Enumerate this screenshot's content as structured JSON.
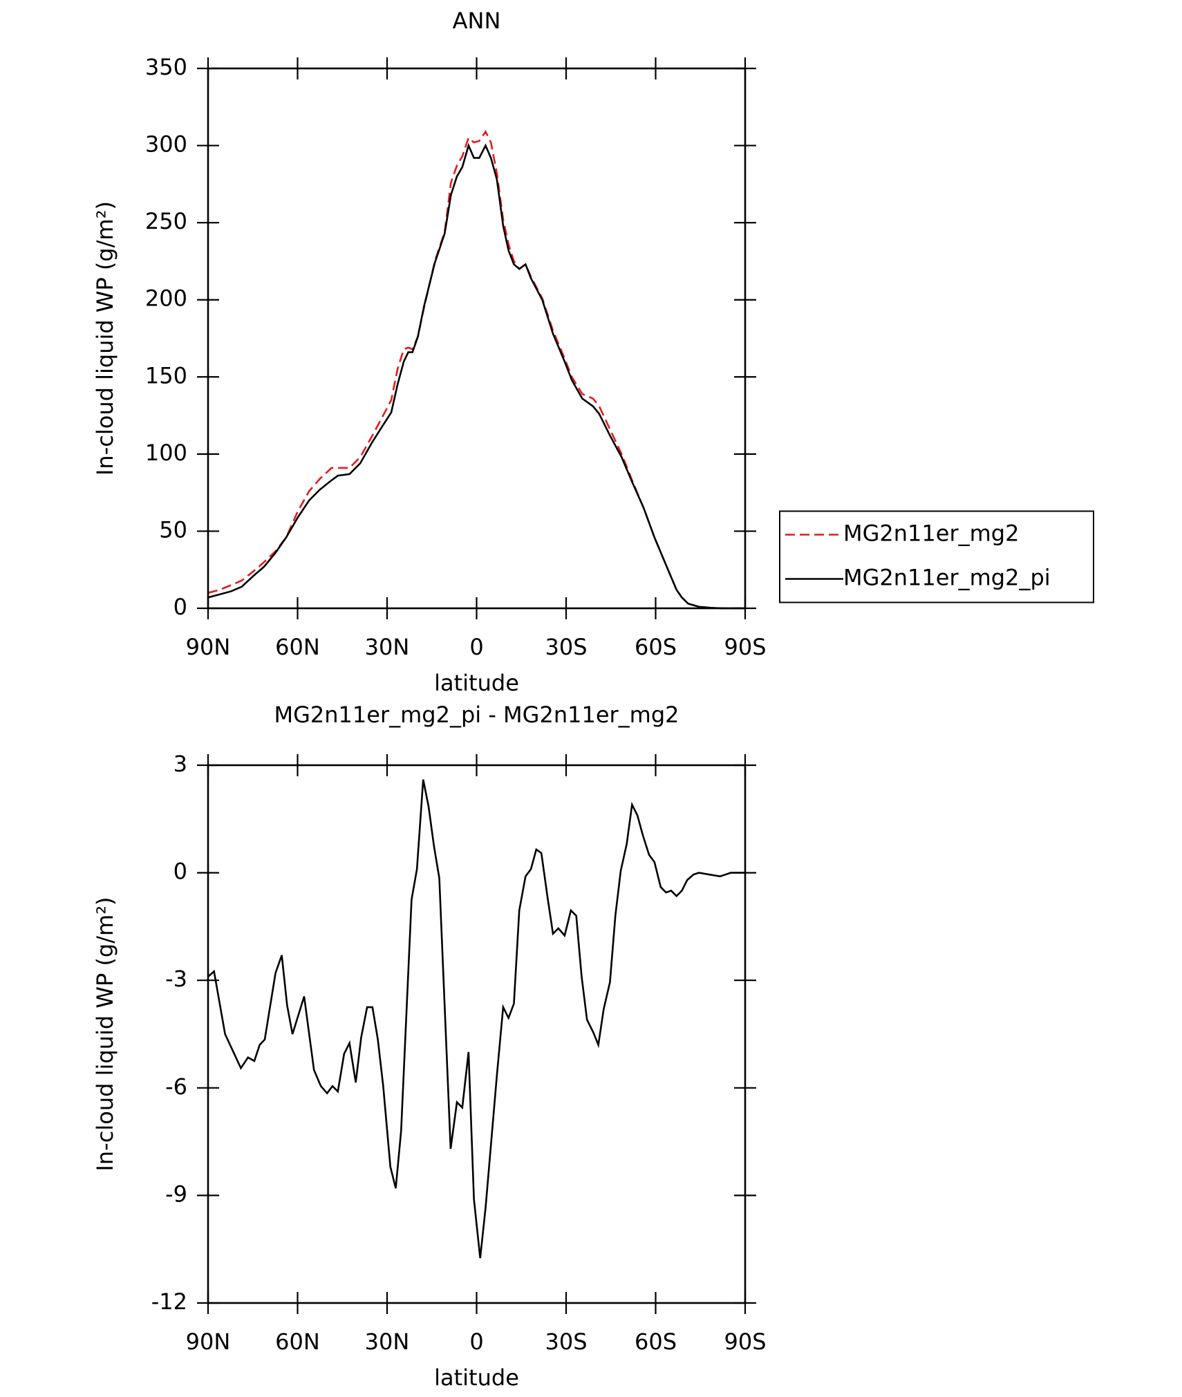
{
  "chart_data": [
    {
      "type": "line",
      "title": "ANN",
      "xlabel": "latitude",
      "ylabel": "In-cloud liquid WP (g/m²)",
      "xlim": [
        90,
        -90
      ],
      "xticks": [
        {
          "value": 90,
          "label": "90N"
        },
        {
          "value": 60,
          "label": "60N"
        },
        {
          "value": 30,
          "label": "30N"
        },
        0,
        {
          "value": -30,
          "label": "30S"
        },
        {
          "value": -60,
          "label": "60S"
        },
        {
          "value": -90,
          "label": "90S"
        }
      ],
      "ylim": [
        0,
        350
      ],
      "yticks": [
        0,
        50,
        100,
        150,
        200,
        250,
        300,
        350
      ],
      "legend": "right",
      "x": [
        90,
        86.1,
        82.3,
        78.7,
        74.8,
        71.2,
        67.4,
        63.8,
        59.9,
        56.1,
        52.5,
        48.6,
        46.5,
        42.6,
        39.0,
        35.2,
        31.6,
        28.6,
        26.5,
        24.4,
        22.9,
        21.5,
        19.7,
        17.6,
        14.0,
        10.7,
        8.6,
        6.6,
        4.8,
        2.7,
        0.9,
        -0.9,
        -3.0,
        -4.8,
        -6.8,
        -8.9,
        -10.7,
        -12.5,
        -14.3,
        -16.4,
        -18.2,
        -22.0,
        -25.6,
        -29.5,
        -31.9,
        -35.4,
        -39.0,
        -41.1,
        -44.7,
        -48.6,
        -52.1,
        -56.0,
        -59.6,
        -63.5,
        -67.0,
        -68.8,
        -70.9,
        -74.5,
        -78.4,
        -82.2,
        -90
      ],
      "series": [
        {
          "name": "MG2n11er_mg2",
          "color": "#e8191b",
          "linestyle": "dashed",
          "values": [
            10,
            12,
            15,
            18,
            24,
            30,
            37,
            46,
            63,
            76,
            84,
            91,
            91,
            91,
            98,
            111,
            124,
            135,
            155,
            168,
            169,
            168,
            176,
            195,
            225,
            244,
            276,
            287,
            293,
            305,
            302,
            303,
            309,
            302,
            282,
            252,
            236,
            225,
            220,
            223,
            215,
            201,
            180,
            162,
            150,
            139,
            136,
            131,
            116,
            100,
            83,
            65,
            46,
            28,
            12,
            7,
            3,
            1,
            0.3,
            0,
            0
          ]
        },
        {
          "name": "MG2n11er_mg2_pi",
          "color": "#000000",
          "linestyle": "solid",
          "values": [
            7,
            9,
            11,
            14,
            21,
            27,
            36,
            46,
            59,
            70,
            77,
            83,
            86,
            87,
            94,
            107,
            118,
            127,
            145,
            160,
            166,
            166,
            176,
            196,
            224,
            243,
            268,
            280,
            286,
            300,
            292,
            292,
            300,
            292,
            278,
            248,
            232,
            223,
            220,
            223,
            214,
            200,
            178,
            160,
            148,
            136,
            131,
            126,
            112,
            98,
            82,
            65,
            46,
            28,
            12,
            7,
            3,
            1,
            0.3,
            0,
            0
          ]
        }
      ]
    },
    {
      "type": "line",
      "title": "MG2n11er_mg2_pi - MG2n11er_mg2",
      "xlabel": "latitude",
      "ylabel": "In-cloud liquid WP (g/m²)",
      "xlim": [
        90,
        -90
      ],
      "xticks": [
        {
          "value": 90,
          "label": "90N"
        },
        {
          "value": 60,
          "label": "60N"
        },
        {
          "value": 30,
          "label": "30N"
        },
        0,
        {
          "value": -30,
          "label": "30S"
        },
        {
          "value": -60,
          "label": "60S"
        },
        {
          "value": -90,
          "label": "90S"
        }
      ],
      "ylim": [
        -12,
        3
      ],
      "yticks": [
        -12,
        -9,
        -6,
        -3,
        0,
        3
      ],
      "x": [
        90,
        88,
        84.3,
        79,
        76.6,
        74.5,
        72.7,
        71,
        67.4,
        65.3,
        63.5,
        61.7,
        57.8,
        54.5,
        52.2,
        50.1,
        48.3,
        46.5,
        44.4,
        42.6,
        40.5,
        38.7,
        36.7,
        34.9,
        33.1,
        31.3,
        28.9,
        27.1,
        25.3,
        21.8,
        20,
        17.9,
        16.1,
        14.3,
        12.5,
        8.7,
        6.6,
        4.8,
        2.7,
        0.9,
        -1.2,
        -3,
        -4.8,
        -6.8,
        -8.9,
        -10.7,
        -12.5,
        -14.3,
        -16.4,
        -18.2,
        -20,
        -21.7,
        -23.8,
        -25.6,
        -27.4,
        -29.5,
        -31.6,
        -33.4,
        -35.2,
        -37,
        -39.1,
        -40.8,
        -42.6,
        -44.7,
        -46.5,
        -48.3,
        -50.3,
        -52.1,
        -53.9,
        -55.7,
        -57.8,
        -59.6,
        -61.7,
        -63.5,
        -65.2,
        -67,
        -68.8,
        -70.6,
        -72.7,
        -74.5,
        -78,
        -81.6,
        -83.4,
        -85.2,
        -90
      ],
      "series": [
        {
          "color": "#000000",
          "linestyle": "solid",
          "values": [
            -2.9,
            -2.75,
            -4.5,
            -5.45,
            -5.15,
            -5.25,
            -4.8,
            -4.65,
            -2.8,
            -2.3,
            -3.7,
            -4.5,
            -3.45,
            -5.5,
            -5.95,
            -6.15,
            -5.95,
            -6.1,
            -5.05,
            -4.75,
            -5.85,
            -4.6,
            -3.75,
            -3.75,
            -4.65,
            -5.95,
            -8.2,
            -8.8,
            -7.2,
            -0.75,
            0.1,
            2.6,
            1.85,
            0.75,
            -0.15,
            -7.7,
            -6.4,
            -6.55,
            -5.0,
            -9.1,
            -10.75,
            -9.35,
            -7.6,
            -5.65,
            -3.75,
            -4.05,
            -3.65,
            -1.05,
            -0.1,
            0.1,
            0.65,
            0.55,
            -0.7,
            -1.7,
            -1.55,
            -1.75,
            -1.05,
            -1.2,
            -2.9,
            -4.1,
            -4.45,
            -4.8,
            -3.8,
            -3.05,
            -1.2,
            0.05,
            0.8,
            1.9,
            1.6,
            1.05,
            0.5,
            0.3,
            -0.4,
            -0.55,
            -0.5,
            -0.65,
            -0.5,
            -0.2,
            -0.05,
            0,
            -0.05,
            -0.1,
            -0.05,
            0,
            0
          ]
        }
      ]
    }
  ]
}
